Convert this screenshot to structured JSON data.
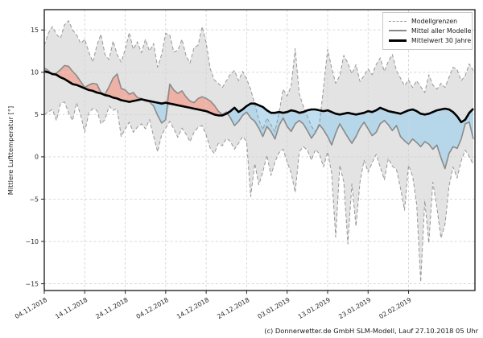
{
  "figure": {
    "ylabel": "Mittlere Lufttemperatur [°]",
    "caption": "(c) Donnerwetter.de GmbH SLM-Modell, Lauf 27.10.2018 05 Uhr"
  },
  "legend": {
    "position": "upper right",
    "items": [
      {
        "label": "Modellgrenzen",
        "style": "dashed-gray"
      },
      {
        "label": "Mittel aller Modelle",
        "style": "solid-gray"
      },
      {
        "label": "Mittelwert 30 Jahre",
        "style": "solid-black-thick"
      }
    ]
  },
  "chart_data": {
    "type": "line",
    "title": "",
    "xlabel": "",
    "ylabel": "Mittlere Lufttemperatur [°]",
    "grid": "dashed",
    "x_unit": "days since 04.11.2018 (daily samples)",
    "xlim_days": [
      0,
      106.4
    ],
    "ylim": [
      -15.8,
      17.4
    ],
    "x_ticks": [
      {
        "day": 0,
        "label": "04.11.2018"
      },
      {
        "day": 10,
        "label": "14.11.2018"
      },
      {
        "day": 20,
        "label": "24.11.2018"
      },
      {
        "day": 30,
        "label": "04.12.2018"
      },
      {
        "day": 40,
        "label": "14.12.2018"
      },
      {
        "day": 50,
        "label": "24.12.2018"
      },
      {
        "day": 60,
        "label": "03.01.2019"
      },
      {
        "day": 70,
        "label": "13.01.2019"
      },
      {
        "day": 80,
        "label": "23.01.2019"
      },
      {
        "day": 90,
        "label": "02.02.2019"
      }
    ],
    "y_ticks": [
      {
        "value": 15,
        "label": "15"
      },
      {
        "value": 10,
        "label": "10"
      },
      {
        "value": 5,
        "label": "5"
      },
      {
        "value": 0,
        "label": "0"
      },
      {
        "value": -5,
        "label": "−5"
      },
      {
        "value": -10,
        "label": "−10"
      },
      {
        "value": -15,
        "label": "−15"
      }
    ],
    "colors": {
      "band": "#e3e3e3",
      "bound": "#979797",
      "model_mean": "#8a8a8a",
      "climate_mean": "#000000",
      "above_normal": "rgba(242,158,143,0.72)",
      "below_normal": "rgba(164,211,235,0.72)"
    },
    "series": [
      {
        "role": "upper",
        "name": "Modellgrenzen (obere Grenze)",
        "style": "dashed",
        "values": [
          13.2,
          14.6,
          15.4,
          14.5,
          14.0,
          15.6,
          16.1,
          15.0,
          14.4,
          13.4,
          13.9,
          12.4,
          11.2,
          13.2,
          14.5,
          12.1,
          11.5,
          13.7,
          12.1,
          11.2,
          12.7,
          14.7,
          12.7,
          13.6,
          12.3,
          13.9,
          12.5,
          13.4,
          10.6,
          12.1,
          14.6,
          14.4,
          12.4,
          12.6,
          13.9,
          12.0,
          11.1,
          12.9,
          13.2,
          15.4,
          13.5,
          10.4,
          9.1,
          8.7,
          8.2,
          9.0,
          9.8,
          10.2,
          9.0,
          10.1,
          9.2,
          8.0,
          6.2,
          4.4,
          3.2,
          4.6,
          3.8,
          3.0,
          5.2,
          8.0,
          7.2,
          8.4,
          12.8,
          7.4,
          6.0,
          4.8,
          3.6,
          3.0,
          4.0,
          8.2,
          12.7,
          10.5,
          8.7,
          9.6,
          12.0,
          11.1,
          9.8,
          10.9,
          8.9,
          9.6,
          10.4,
          9.7,
          10.9,
          11.7,
          10.1,
          11.3,
          12.1,
          10.2,
          9.3,
          8.4,
          9.1,
          8.2,
          9.0,
          8.3,
          7.6,
          9.7,
          8.5,
          8.0,
          8.7,
          8.2,
          9.4,
          10.6,
          10.3,
          9.0,
          9.6,
          11.0,
          10.2
        ]
      },
      {
        "role": "lower",
        "name": "Modellgrenzen (untere Grenze)",
        "style": "dashed",
        "values": [
          5.0,
          5.3,
          5.6,
          4.3,
          6.3,
          6.5,
          5.2,
          4.3,
          6.4,
          4.9,
          2.9,
          5.2,
          5.7,
          5.5,
          3.9,
          4.4,
          6.0,
          5.5,
          5.7,
          2.4,
          3.3,
          4.1,
          2.9,
          3.5,
          3.9,
          3.3,
          4.4,
          2.4,
          0.6,
          2.6,
          3.4,
          4.2,
          3.3,
          2.3,
          3.4,
          2.7,
          1.8,
          2.9,
          3.5,
          3.7,
          2.6,
          1.0,
          0.4,
          1.6,
          1.3,
          2.2,
          1.8,
          0.9,
          1.6,
          2.4,
          1.8,
          -4.7,
          -0.8,
          -3.3,
          -1.8,
          0.2,
          -2.2,
          -0.6,
          0.5,
          0.9,
          -0.6,
          -1.9,
          -4.2,
          0.6,
          1.2,
          0.8,
          -0.4,
          0.9,
          0.3,
          -1.2,
          0.6,
          -2.0,
          -9.5,
          -1.0,
          -3.0,
          -10.3,
          -3.2,
          -8.2,
          -3.0,
          -0.4,
          -1.8,
          -0.7,
          0.3,
          -1.2,
          -2.7,
          -0.2,
          -1.1,
          -1.5,
          -3.7,
          -6.3,
          -1.0,
          -2.3,
          -5.6,
          -14.8,
          -5.2,
          -10.2,
          -3.0,
          -6.0,
          -9.6,
          -8.0,
          -3.5,
          -1.2,
          -2.5,
          -0.5,
          0.8,
          0.0,
          -0.9
        ]
      },
      {
        "role": "model_mean",
        "name": "Mittel aller Modelle",
        "style": "solid",
        "values": [
          10.5,
          10.2,
          9.7,
          9.9,
          10.3,
          10.8,
          10.7,
          10.1,
          9.6,
          8.9,
          8.2,
          8.5,
          8.7,
          8.6,
          7.6,
          7.4,
          8.3,
          9.3,
          9.8,
          8.1,
          7.9,
          7.4,
          7.6,
          7.0,
          6.9,
          6.6,
          6.5,
          6.0,
          4.9,
          4.0,
          4.4,
          8.6,
          7.9,
          7.5,
          7.8,
          7.1,
          6.6,
          6.4,
          6.9,
          7.1,
          6.9,
          6.6,
          6.1,
          5.4,
          5.0,
          5.3,
          4.6,
          3.7,
          4.2,
          4.9,
          5.3,
          4.6,
          4.2,
          3.4,
          2.4,
          3.6,
          3.0,
          2.1,
          3.7,
          4.6,
          3.6,
          3.0,
          3.9,
          4.3,
          3.9,
          3.1,
          2.2,
          2.9,
          3.8,
          3.2,
          2.4,
          1.4,
          2.8,
          3.9,
          3.1,
          2.3,
          1.6,
          2.4,
          3.4,
          4.1,
          3.3,
          2.5,
          2.9,
          3.9,
          4.3,
          3.8,
          3.1,
          3.7,
          2.4,
          1.9,
          1.5,
          2.1,
          1.7,
          1.2,
          1.8,
          1.5,
          0.9,
          1.4,
          -0.1,
          -1.4,
          0.4,
          1.2,
          1.0,
          2.1,
          3.9,
          4.1,
          2.1
        ]
      },
      {
        "role": "climate_mean",
        "name": "Mittelwert 30 Jahre",
        "style": "solid-thick",
        "values": [
          10.1,
          10.0,
          9.8,
          9.7,
          9.4,
          9.2,
          8.9,
          8.6,
          8.5,
          8.3,
          8.1,
          7.9,
          7.8,
          7.6,
          7.5,
          7.3,
          7.2,
          7.0,
          6.9,
          6.7,
          6.6,
          6.5,
          6.6,
          6.7,
          6.8,
          6.7,
          6.6,
          6.5,
          6.4,
          6.3,
          6.4,
          6.3,
          6.2,
          6.1,
          6.0,
          5.9,
          5.8,
          5.7,
          5.6,
          5.5,
          5.4,
          5.2,
          5.0,
          4.9,
          4.9,
          5.1,
          5.4,
          5.8,
          5.3,
          5.6,
          6.0,
          6.3,
          6.3,
          6.1,
          5.9,
          5.5,
          5.2,
          5.2,
          5.3,
          5.2,
          5.3,
          5.5,
          5.4,
          5.2,
          5.3,
          5.5,
          5.6,
          5.6,
          5.5,
          5.4,
          5.5,
          5.3,
          5.1,
          5.0,
          5.1,
          5.2,
          5.1,
          5.0,
          5.1,
          5.2,
          5.4,
          5.3,
          5.5,
          5.8,
          5.6,
          5.4,
          5.3,
          5.2,
          5.1,
          5.3,
          5.5,
          5.6,
          5.4,
          5.1,
          5.0,
          5.1,
          5.3,
          5.5,
          5.6,
          5.7,
          5.6,
          5.3,
          4.8,
          4.1,
          4.4,
          5.2,
          5.7
        ]
      }
    ]
  }
}
